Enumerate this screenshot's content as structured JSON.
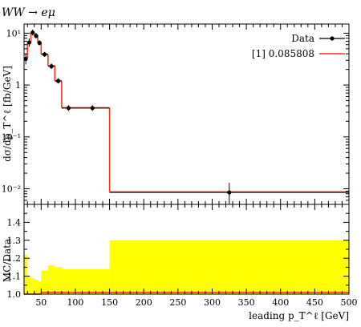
{
  "chart_data": [
    {
      "type": "line",
      "title": "WW → eμ",
      "xlabel": "leading p_T^ℓ [GeV]",
      "ylabel": "dσ/dp_T^ℓ [fb/GeV]",
      "yscale": "log",
      "xlim": [
        25,
        500
      ],
      "ylim": [
        0.005,
        15
      ],
      "ytick_values": [
        0.01,
        0.1,
        1,
        10
      ],
      "ytick_labels": [
        "10⁻²",
        "10⁻¹",
        "1",
        "10¹"
      ],
      "legend_position": "top-right",
      "bin_edges": [
        25,
        30,
        35,
        40,
        45,
        50,
        60,
        70,
        80,
        100,
        150,
        500
      ],
      "series": [
        {
          "name": "Data",
          "kind": "points",
          "color": "#000000",
          "x": [
            27.5,
            32.5,
            37.5,
            42.5,
            47.5,
            55,
            65,
            75,
            90,
            125,
            325
          ],
          "y": [
            3.2,
            6.6,
            10.3,
            8.9,
            6.5,
            3.9,
            2.3,
            1.2,
            0.36,
            0.36,
            0.0085
          ],
          "yerr_up": [
            0.8,
            1.3,
            1.5,
            1.2,
            0.8,
            0.45,
            0.3,
            0.15,
            0.05,
            0.05,
            0.0045
          ],
          "yerr_down": [
            0.7,
            1.1,
            1.3,
            1.0,
            0.7,
            0.4,
            0.26,
            0.13,
            0.045,
            0.045,
            0.0035
          ]
        },
        {
          "name": "[1] 0.085808",
          "kind": "step",
          "color": "#e8391d",
          "values": [
            3.3,
            6.7,
            10.4,
            9.0,
            6.6,
            3.95,
            2.35,
            1.2,
            0.365,
            0.365,
            0.0087
          ]
        }
      ]
    },
    {
      "type": "area",
      "xlabel": "leading p_T^ℓ [GeV]",
      "ylabel": "MC/Data",
      "xlim": [
        25,
        500
      ],
      "ylim": [
        1.0,
        1.5
      ],
      "ytick_values": [
        1.0,
        1.1,
        1.2,
        1.3,
        1.4
      ],
      "ytick_labels": [
        "1.0",
        "1.1",
        "1.2",
        "1.3",
        "1.4"
      ],
      "xtick_values": [
        50,
        100,
        150,
        200,
        250,
        300,
        350,
        400,
        450,
        500
      ],
      "xtick_labels": [
        "50",
        "100",
        "150",
        "200",
        "250",
        "300",
        "350",
        "400",
        "450",
        "500"
      ],
      "bin_edges": [
        25,
        30,
        35,
        40,
        45,
        50,
        60,
        70,
        80,
        100,
        150,
        500
      ],
      "band_color": "#ffff00",
      "band_upper": [
        1.22,
        1.1,
        1.09,
        1.08,
        1.07,
        1.13,
        1.16,
        1.15,
        1.14,
        1.14,
        1.3
      ],
      "band_lower": [
        1.0,
        1.0,
        1.0,
        1.0,
        1.0,
        1.0,
        1.0,
        1.0,
        1.0,
        1.0,
        1.0
      ],
      "ratio_line": [
        1.0,
        1.0,
        1.0,
        1.0,
        1.0,
        1.01,
        1.01,
        1.01,
        1.01,
        1.01,
        1.01
      ],
      "ratio_color": "#e8391d"
    }
  ]
}
